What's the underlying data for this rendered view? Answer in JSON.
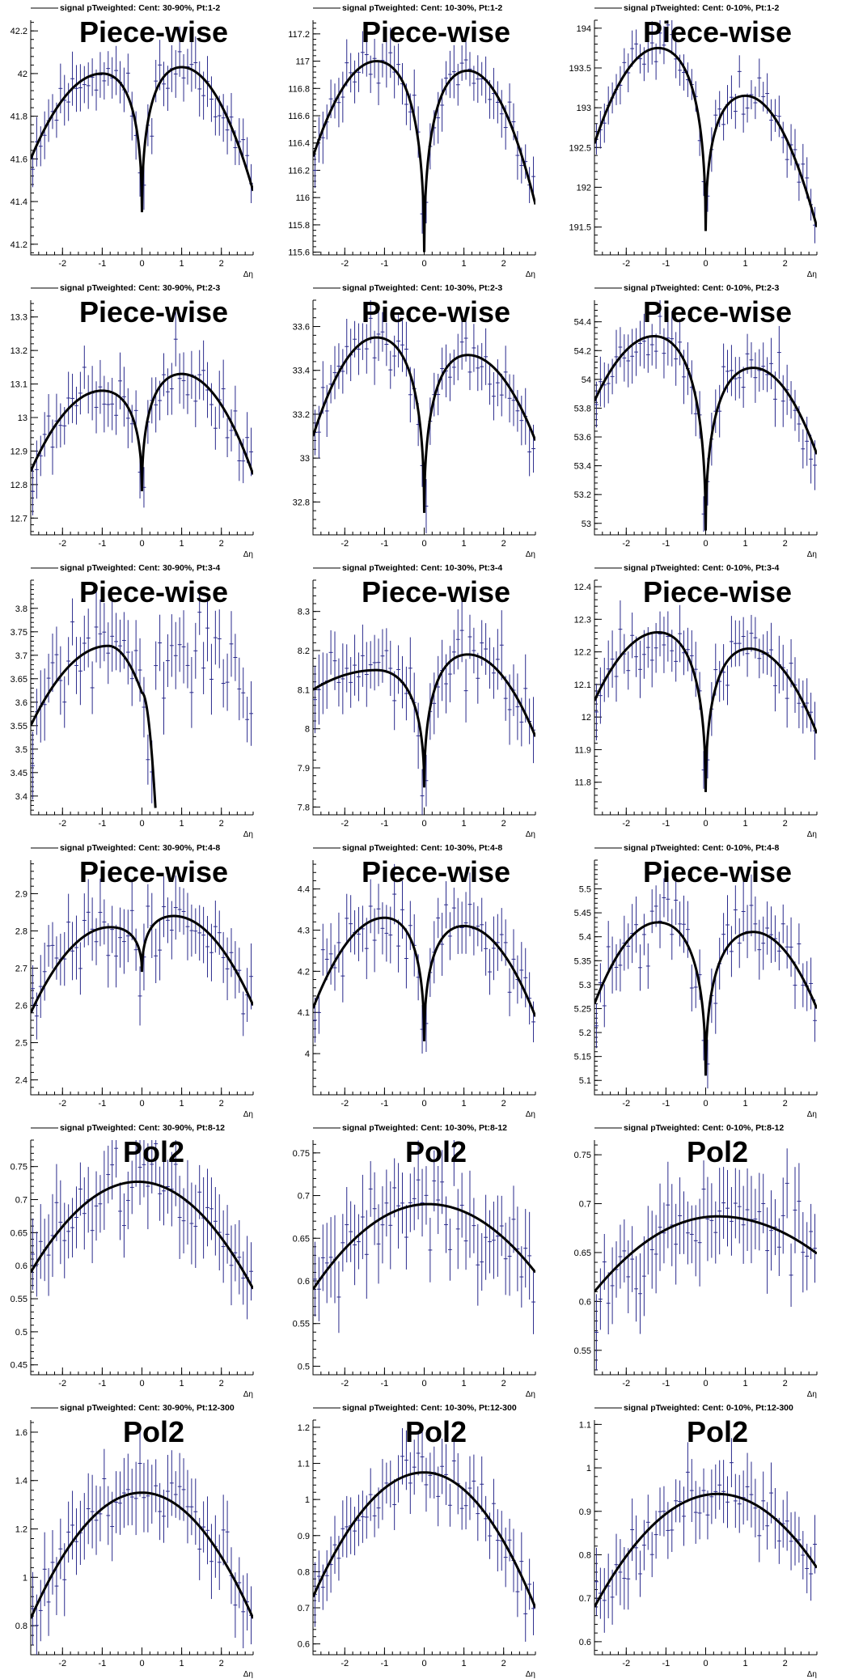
{
  "colors": {
    "points": "#2a2a8c",
    "fit": "#000000",
    "axes": "#000000"
  },
  "xlabel": "Δη",
  "chart_data": [
    {
      "type": "scatter",
      "title": "signal pTweighted: Cent: 30-90%, Pt:1-2",
      "fit_label": "Piece-wise",
      "xlabel": "Δη",
      "xlim": [
        -2.8,
        2.8
      ],
      "ylim": [
        41.15,
        42.25
      ],
      "yticks": [
        41.2,
        41.4,
        41.6,
        41.8,
        42,
        42.2
      ],
      "fit": {
        "kind": "piecewise",
        "left": {
          "peak_x": -1.0,
          "peak_y": 42.0,
          "edge_y": 41.6
        },
        "right": {
          "peak_x": 1.0,
          "peak_y": 42.03,
          "edge_y": 41.45
        },
        "center_y": 41.35
      },
      "points": {
        "seed": 11,
        "spread": 0.08,
        "err": 0.1
      }
    },
    {
      "type": "scatter",
      "title": "signal pTweighted: Cent: 10-30%, Pt:1-2",
      "fit_label": "Piece-wise",
      "xlabel": "Δη",
      "xlim": [
        -2.8,
        2.8
      ],
      "ylim": [
        115.58,
        117.3
      ],
      "yticks": [
        115.6,
        115.8,
        116,
        116.2,
        116.4,
        116.6,
        116.8,
        117,
        117.2
      ],
      "fit": {
        "kind": "piecewise",
        "left": {
          "peak_x": -1.2,
          "peak_y": 117.0,
          "edge_y": 116.3
        },
        "right": {
          "peak_x": 1.1,
          "peak_y": 116.93,
          "edge_y": 115.95
        },
        "center_y": 115.6
      },
      "points": {
        "seed": 12,
        "spread": 0.12,
        "err": 0.15
      }
    },
    {
      "type": "scatter",
      "title": "signal pTweighted: Cent: 0-10%, Pt:1-2",
      "fit_label": "Piece-wise",
      "xlabel": "Δη",
      "xlim": [
        -2.8,
        2.8
      ],
      "ylim": [
        191.15,
        194.1
      ],
      "yticks": [
        191.5,
        192,
        192.5,
        193,
        193.5,
        194
      ],
      "fit": {
        "kind": "piecewise",
        "left": {
          "peak_x": -1.2,
          "peak_y": 193.75,
          "edge_y": 192.55
        },
        "right": {
          "peak_x": 1.0,
          "peak_y": 193.15,
          "edge_y": 191.5
        },
        "center_y": 191.45
      },
      "points": {
        "seed": 13,
        "spread": 0.18,
        "err": 0.22
      }
    },
    {
      "type": "scatter",
      "title": "signal pTweighted: Cent: 30-90%, Pt:2-3",
      "fit_label": "Piece-wise",
      "xlabel": "Δη",
      "xlim": [
        -2.8,
        2.8
      ],
      "ylim": [
        12.65,
        13.35
      ],
      "yticks": [
        12.7,
        12.8,
        12.9,
        13,
        13.1,
        13.2,
        13.3
      ],
      "fit": {
        "kind": "piecewise",
        "left": {
          "peak_x": -1.0,
          "peak_y": 13.08,
          "edge_y": 12.84
        },
        "right": {
          "peak_x": 1.0,
          "peak_y": 13.13,
          "edge_y": 12.83
        },
        "center_y": 12.78
      },
      "points": {
        "seed": 21,
        "spread": 0.06,
        "err": 0.07
      }
    },
    {
      "type": "scatter",
      "title": "signal pTweighted: Cent: 10-30%, Pt:2-3",
      "fit_label": "Piece-wise",
      "xlabel": "Δη",
      "xlim": [
        -2.8,
        2.8
      ],
      "ylim": [
        32.65,
        33.72
      ],
      "yticks": [
        32.8,
        33,
        33.2,
        33.4,
        33.6
      ],
      "fit": {
        "kind": "piecewise",
        "left": {
          "peak_x": -1.2,
          "peak_y": 33.55,
          "edge_y": 33.1
        },
        "right": {
          "peak_x": 1.1,
          "peak_y": 33.47,
          "edge_y": 33.08
        },
        "center_y": 32.75
      },
      "points": {
        "seed": 22,
        "spread": 0.08,
        "err": 0.1
      }
    },
    {
      "type": "scatter",
      "title": "signal pTweighted: Cent: 0-10%, Pt:2-3",
      "fit_label": "Piece-wise",
      "xlabel": "Δη",
      "xlim": [
        -2.8,
        2.8
      ],
      "ylim": [
        52.92,
        54.55
      ],
      "yticks": [
        53,
        53.2,
        53.4,
        53.6,
        53.8,
        54,
        54.2,
        54.4
      ],
      "fit": {
        "kind": "piecewise",
        "left": {
          "peak_x": -1.3,
          "peak_y": 54.3,
          "edge_y": 53.85
        },
        "right": {
          "peak_x": 1.2,
          "peak_y": 54.08,
          "edge_y": 53.48
        },
        "center_y": 52.95
      },
      "points": {
        "seed": 23,
        "spread": 0.12,
        "err": 0.15
      }
    },
    {
      "type": "scatter",
      "title": "signal pTweighted: Cent: 30-90%, Pt:3-4",
      "fit_label": "Piece-wise",
      "xlabel": "Δη",
      "xlim": [
        -2.8,
        2.8
      ],
      "ylim": [
        3.36,
        3.86
      ],
      "yticks": [
        3.4,
        3.45,
        3.5,
        3.55,
        3.6,
        3.65,
        3.7,
        3.75,
        3.8
      ],
      "fit": {
        "kind": "broken",
        "left": {
          "peak_x": -0.85,
          "peak_y": 3.72,
          "edge_y": 3.55
        },
        "plateau_y": 3.62,
        "drop_end": {
          "x": 0.35,
          "y": 3.36
        }
      },
      "points": {
        "seed": 31,
        "spread": 0.06,
        "err": 0.06,
        "right_level": 3.72,
        "right_edge": 3.55
      }
    },
    {
      "type": "scatter",
      "title": "signal pTweighted: Cent: 10-30%, Pt:3-4",
      "fit_label": "Piece-wise",
      "xlabel": "Δη",
      "xlim": [
        -2.8,
        2.8
      ],
      "ylim": [
        7.78,
        8.38
      ],
      "yticks": [
        7.8,
        7.9,
        8,
        8.1,
        8.2,
        8.3
      ],
      "fit": {
        "kind": "piecewise",
        "left": {
          "peak_x": -1.2,
          "peak_y": 8.15,
          "edge_y": 8.1
        },
        "right": {
          "peak_x": 1.1,
          "peak_y": 8.19,
          "edge_y": 7.98
        },
        "center_y": 7.85
      },
      "points": {
        "seed": 32,
        "spread": 0.06,
        "err": 0.07
      }
    },
    {
      "type": "scatter",
      "title": "signal pTweighted: Cent: 0-10%, Pt:3-4",
      "fit_label": "Piece-wise",
      "xlabel": "Δη",
      "xlim": [
        -2.8,
        2.8
      ],
      "ylim": [
        11.7,
        12.42
      ],
      "yticks": [
        11.8,
        11.9,
        12,
        12.1,
        12.2,
        12.3,
        12.4
      ],
      "fit": {
        "kind": "piecewise",
        "left": {
          "peak_x": -1.2,
          "peak_y": 12.26,
          "edge_y": 12.05
        },
        "right": {
          "peak_x": 1.1,
          "peak_y": 12.21,
          "edge_y": 11.95
        },
        "center_y": 11.77
      },
      "points": {
        "seed": 33,
        "spread": 0.06,
        "err": 0.07
      }
    },
    {
      "type": "scatter",
      "title": "signal pTweighted: Cent: 30-90%, Pt:4-8",
      "fit_label": "Piece-wise",
      "xlabel": "Δη",
      "xlim": [
        -2.8,
        2.8
      ],
      "ylim": [
        2.36,
        2.99
      ],
      "yticks": [
        2.4,
        2.5,
        2.6,
        2.7,
        2.8,
        2.9
      ],
      "fit": {
        "kind": "piecewise",
        "left": {
          "peak_x": -0.8,
          "peak_y": 2.81,
          "edge_y": 2.58
        },
        "right": {
          "peak_x": 0.8,
          "peak_y": 2.84,
          "edge_y": 2.6
        },
        "center_y": 2.69
      },
      "points": {
        "seed": 41,
        "spread": 0.06,
        "err": 0.07
      }
    },
    {
      "type": "scatter",
      "title": "signal pTweighted: Cent: 10-30%, Pt:4-8",
      "fit_label": "Piece-wise",
      "xlabel": "Δη",
      "xlim": [
        -2.8,
        2.8
      ],
      "ylim": [
        3.9,
        4.47
      ],
      "yticks": [
        4,
        4.1,
        4.2,
        4.3,
        4.4
      ],
      "fit": {
        "kind": "piecewise",
        "left": {
          "peak_x": -1.0,
          "peak_y": 4.33,
          "edge_y": 4.11
        },
        "right": {
          "peak_x": 1.0,
          "peak_y": 4.31,
          "edge_y": 4.09
        },
        "center_y": 4.03
      },
      "points": {
        "seed": 42,
        "spread": 0.05,
        "err": 0.06
      }
    },
    {
      "type": "scatter",
      "title": "signal pTweighted: Cent: 0-10%, Pt:4-8",
      "fit_label": "Piece-wise",
      "xlabel": "Δη",
      "xlim": [
        -2.8,
        2.8
      ],
      "ylim": [
        5.07,
        5.56
      ],
      "yticks": [
        5.1,
        5.15,
        5.2,
        5.25,
        5.3,
        5.35,
        5.4,
        5.45,
        5.5
      ],
      "fit": {
        "kind": "piecewise",
        "left": {
          "peak_x": -1.2,
          "peak_y": 5.43,
          "edge_y": 5.26
        },
        "right": {
          "peak_x": 1.2,
          "peak_y": 5.41,
          "edge_y": 5.25
        },
        "center_y": 5.11
      },
      "points": {
        "seed": 43,
        "spread": 0.05,
        "err": 0.05
      }
    },
    {
      "type": "scatter",
      "title": "signal pTweighted: Cent: 30-90%, Pt:8-12",
      "fit_label": "Pol2",
      "xlabel": "Δη",
      "xlim": [
        -2.8,
        2.8
      ],
      "ylim": [
        0.435,
        0.79
      ],
      "yticks": [
        0.45,
        0.5,
        0.55,
        0.6,
        0.65,
        0.7,
        0.75
      ],
      "fit": {
        "kind": "pol2",
        "vertex_x": -0.1,
        "vertex_y": 0.727,
        "left_y": 0.59,
        "right_y": 0.565
      },
      "points": {
        "seed": 51,
        "spread": 0.04,
        "err": 0.05
      }
    },
    {
      "type": "scatter",
      "title": "signal pTweighted: Cent: 10-30%, Pt:8-12",
      "fit_label": "Pol2",
      "xlabel": "Δη",
      "xlim": [
        -2.8,
        2.8
      ],
      "ylim": [
        0.49,
        0.765
      ],
      "yticks": [
        0.5,
        0.55,
        0.6,
        0.65,
        0.7,
        0.75
      ],
      "fit": {
        "kind": "pol2",
        "vertex_x": 0.1,
        "vertex_y": 0.69,
        "left_y": 0.59,
        "right_y": 0.61
      },
      "points": {
        "seed": 52,
        "spread": 0.035,
        "err": 0.04
      }
    },
    {
      "type": "scatter",
      "title": "signal pTweighted: Cent: 0-10%, Pt:8-12",
      "fit_label": "Pol2",
      "xlabel": "Δη",
      "xlim": [
        -2.8,
        2.8
      ],
      "ylim": [
        0.525,
        0.765
      ],
      "yticks": [
        0.55,
        0.6,
        0.65,
        0.7,
        0.75
      ],
      "fit": {
        "kind": "pol2",
        "vertex_x": 0.3,
        "vertex_y": 0.687,
        "left_y": 0.61,
        "right_y": 0.649
      },
      "points": {
        "seed": 53,
        "spread": 0.03,
        "err": 0.035
      }
    },
    {
      "type": "scatter",
      "title": "signal pTweighted: Cent: 30-90%, Pt:12-300",
      "fit_label": "Pol2",
      "xlabel": "Δη",
      "xlim": [
        -2.8,
        2.8
      ],
      "ylim": [
        0.68,
        1.65
      ],
      "yticks": [
        0.8,
        1,
        1.2,
        1.4,
        1.6
      ],
      "fit": {
        "kind": "pol2",
        "vertex_x": 0.0,
        "vertex_y": 1.35,
        "left_y": 0.83,
        "right_y": 0.83
      },
      "points": {
        "seed": 61,
        "spread": 0.1,
        "err": 0.12
      }
    },
    {
      "type": "scatter",
      "title": "signal pTweighted: Cent: 10-30%, Pt:12-300",
      "fit_label": "Pol2",
      "xlabel": "Δη",
      "xlim": [
        -2.8,
        2.8
      ],
      "ylim": [
        0.57,
        1.22
      ],
      "yticks": [
        0.6,
        0.7,
        0.8,
        0.9,
        1,
        1.1,
        1.2
      ],
      "fit": {
        "kind": "pol2",
        "vertex_x": 0.0,
        "vertex_y": 1.075,
        "left_y": 0.73,
        "right_y": 0.7
      },
      "points": {
        "seed": 62,
        "spread": 0.06,
        "err": 0.07
      }
    },
    {
      "type": "scatter",
      "title": "signal pTweighted: Cent: 0-10%, Pt:12-300",
      "fit_label": "Pol2",
      "xlabel": "Δη",
      "xlim": [
        -2.8,
        2.8
      ],
      "ylim": [
        0.57,
        1.11
      ],
      "yticks": [
        0.6,
        0.7,
        0.8,
        0.9,
        1,
        1.1
      ],
      "fit": {
        "kind": "pol2",
        "vertex_x": 0.3,
        "vertex_y": 0.94,
        "left_y": 0.68,
        "right_y": 0.77
      },
      "points": {
        "seed": 63,
        "spread": 0.05,
        "err": 0.06
      }
    }
  ]
}
